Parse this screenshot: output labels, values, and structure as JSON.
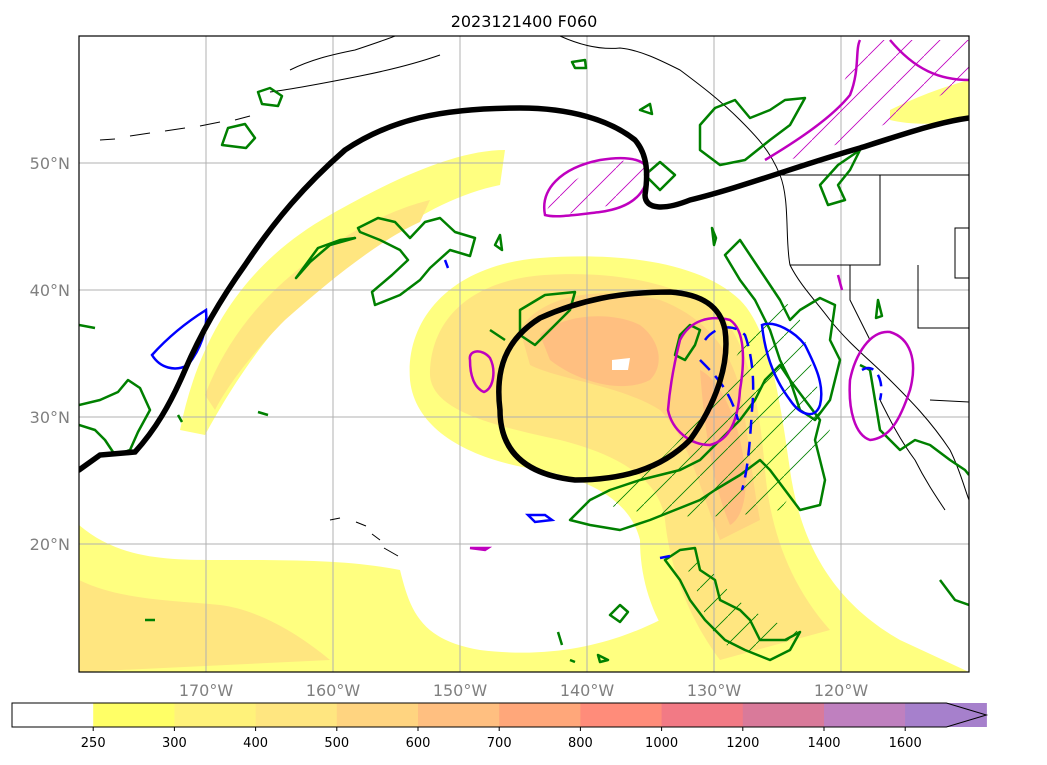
{
  "title": "2023121400 F060",
  "latitude_labels": [
    "50°N",
    "40°N",
    "30°N",
    "20°N"
  ],
  "longitude_labels": [
    "170°W",
    "160°W",
    "150°W",
    "140°W",
    "130°W",
    "120°W"
  ],
  "colorbar": {
    "ticks": [
      "250",
      "300",
      "400",
      "500",
      "600",
      "700",
      "800",
      "1000",
      "1200",
      "1400",
      "1600"
    ],
    "colors": [
      "#ffffff",
      "#ffff66",
      "#fff27a",
      "#ffe680",
      "#ffd480",
      "#ffbf80",
      "#ffa77a",
      "#ff8c7a",
      "#f27a85",
      "#d97a9a",
      "#bf80bf",
      "#a680cc"
    ],
    "extend": "max"
  },
  "colors": {
    "black_contour": "#000000",
    "green_contour": "#008000",
    "magenta_contour": "#bf00bf",
    "blue_contour": "#0000ff",
    "grid": "#b0b0b0"
  }
}
